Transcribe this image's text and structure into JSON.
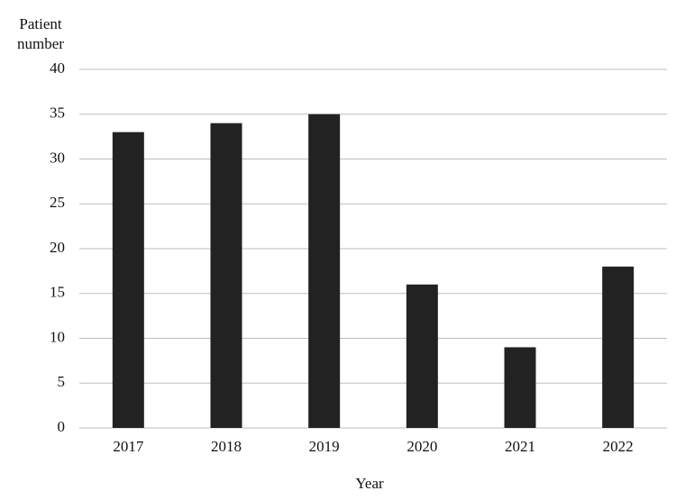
{
  "chart_data": {
    "type": "bar",
    "x_label": "Year",
    "y_label": "Patient number",
    "categories": [
      "2017",
      "2018",
      "2019",
      "2020",
      "2021",
      "2022"
    ],
    "values": [
      33,
      34,
      35,
      16,
      9,
      18
    ],
    "color": "#222222",
    "ylim": [
      0,
      40
    ],
    "yticks": [
      0,
      5,
      10,
      15,
      20,
      25,
      30,
      35,
      40
    ],
    "grid": true
  }
}
